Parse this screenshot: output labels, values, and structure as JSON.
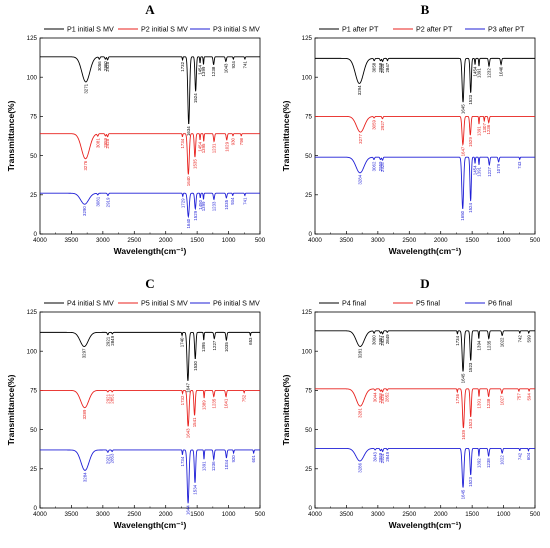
{
  "colors": {
    "series1": "#000000",
    "series2": "#e8211d",
    "series3": "#1f1fd6"
  },
  "chart_data": [
    {
      "type": "line",
      "panel_label": "A",
      "xlabel": "Wavelength(cm⁻¹)",
      "ylabel": "Transmittance(%)",
      "xlim": [
        4000,
        500
      ],
      "ylim": [
        0,
        125
      ],
      "xticks": [
        4000,
        3500,
        3000,
        2500,
        2000,
        1500,
        1000,
        500
      ],
      "yticks": [
        0,
        25,
        50,
        75,
        100,
        125
      ],
      "legend_position": "top",
      "series": [
        {
          "name": "P1 initial S MV",
          "baseline": 113,
          "peaks": [
            [
              3271,
              16,
              180
            ],
            [
              3056,
              1.5,
              25
            ],
            [
              2960,
              1.5,
              25
            ],
            [
              2925,
              2,
              25
            ],
            [
              1732,
              2,
              15
            ],
            [
              1634,
              43,
              40
            ],
            [
              1524,
              22,
              30
            ],
            [
              1454,
              4,
              15
            ],
            [
              1399,
              5,
              15
            ],
            [
              1238,
              5,
              25
            ],
            [
              1043,
              3,
              25
            ],
            [
              924,
              1.5,
              15
            ],
            [
              741,
              1.5,
              15
            ]
          ],
          "labels": [
            "3271",
            "3056",
            "2960",
            "2925",
            "1732",
            "1634",
            "1524",
            "1454",
            "1399",
            "1238",
            "1043",
            "924",
            "741"
          ]
        },
        {
          "name": "P2 initial S MV",
          "baseline": 64,
          "peaks": [
            [
              3276,
              16,
              180
            ],
            [
              3081,
              1.5,
              25
            ],
            [
              2959,
              1.5,
              25
            ],
            [
              2925,
              2,
              25
            ],
            [
              1734,
              2,
              15
            ],
            [
              1640,
              26,
              40
            ],
            [
              1535,
              15,
              30
            ],
            [
              1454,
              4,
              15
            ],
            [
              1395,
              5,
              15
            ],
            [
              1231,
              5,
              25
            ],
            [
              1029,
              4,
              25
            ],
            [
              930,
              1.5,
              15
            ],
            [
              798,
              1.5,
              15
            ]
          ],
          "labels": [
            "3276",
            "3081",
            "2959",
            "2925",
            "1734",
            "1640",
            "1535",
            "1454",
            "1395",
            "1231",
            "1029",
            "930",
            "798"
          ]
        },
        {
          "name": "P3 initial S MV",
          "baseline": 26,
          "peaks": [
            [
              3290,
              7,
              180
            ],
            [
              3081,
              1,
              25
            ],
            [
              2919,
              1.5,
              25
            ],
            [
              1729,
              2,
              15
            ],
            [
              1640,
              15,
              40
            ],
            [
              1529,
              10,
              30
            ],
            [
              1450,
              3,
              15
            ],
            [
              1399,
              4,
              15
            ],
            [
              1233,
              4,
              25
            ],
            [
              1035,
              3,
              25
            ],
            [
              934,
              1.5,
              15
            ],
            [
              741,
              1.5,
              15
            ]
          ],
          "labels": [
            "3290",
            "3081",
            "2919",
            "1729",
            "1640",
            "1529",
            "1450",
            "1399",
            "1233",
            "1035",
            "934",
            "741"
          ]
        }
      ]
    },
    {
      "type": "line",
      "panel_label": "B",
      "xlabel": "Wavelength(cm⁻¹)",
      "ylabel": "Transmittance(%)",
      "xlim": [
        4000,
        500
      ],
      "ylim": [
        0,
        125
      ],
      "xticks": [
        4000,
        3500,
        3000,
        2500,
        2000,
        1500,
        1000,
        500
      ],
      "yticks": [
        0,
        25,
        50,
        75,
        100,
        125
      ],
      "legend_position": "top",
      "series": [
        {
          "name": "P1 after PT",
          "baseline": 112,
          "peaks": [
            [
              3294,
              16,
              180
            ],
            [
              3058,
              1.5,
              25
            ],
            [
              2958,
              1.5,
              25
            ],
            [
              2925,
              2,
              25
            ],
            [
              2847,
              1.5,
              20
            ],
            [
              1645,
              28,
              40
            ],
            [
              1523,
              22,
              30
            ],
            [
              1454,
              4,
              15
            ],
            [
              1391,
              5,
              15
            ],
            [
              1232,
              5,
              25
            ],
            [
              1040,
              4,
              25
            ]
          ],
          "labels": [
            "3294",
            "3058",
            "2958",
            "2925",
            "2847",
            "1645",
            "1523",
            "1454",
            "1391",
            "1232",
            "1040"
          ]
        },
        {
          "name": "P2 after PT",
          "baseline": 75,
          "peaks": [
            [
              3277,
              10,
              180
            ],
            [
              3059,
              1,
              25
            ],
            [
              2927,
              1.5,
              25
            ],
            [
              1647,
              18,
              40
            ],
            [
              1529,
              12,
              30
            ],
            [
              1391,
              5,
              15
            ],
            [
              1307,
              3,
              15
            ],
            [
              1236,
              4,
              25
            ]
          ],
          "labels": [
            "3277",
            "3059",
            "2927",
            "1647",
            "1529",
            "1391",
            "1307",
            "1236"
          ]
        },
        {
          "name": "P3 after PT",
          "baseline": 49,
          "peaks": [
            [
              3284,
              10,
              180
            ],
            [
              3062,
              1.5,
              25
            ],
            [
              2959,
              1.5,
              25
            ],
            [
              2926,
              2,
              25
            ],
            [
              1650,
              33,
              40
            ],
            [
              1524,
              28,
              30
            ],
            [
              1454,
              4,
              15
            ],
            [
              1391,
              5,
              15
            ],
            [
              1227,
              5,
              25
            ],
            [
              1079,
              3,
              25
            ],
            [
              743,
              1.5,
              15
            ]
          ],
          "labels": [
            "3284",
            "3062",
            "2959",
            "2926",
            "1650",
            "1524",
            "1454",
            "1391",
            "1227",
            "1079",
            "743"
          ]
        }
      ]
    },
    {
      "type": "line",
      "panel_label": "C",
      "xlabel": "Wavelength(cm⁻¹)",
      "ylabel": "Transmittance(%)",
      "xlim": [
        4000,
        500
      ],
      "ylim": [
        0,
        125
      ],
      "xticks": [
        4000,
        3500,
        3000,
        2500,
        2000,
        1500,
        1000,
        500
      ],
      "yticks": [
        0,
        25,
        50,
        75,
        100,
        125
      ],
      "legend_position": "top",
      "series": [
        {
          "name": "P4 initial S MV",
          "baseline": 112,
          "peaks": [
            [
              3297,
              9,
              180
            ],
            [
              2921,
              1.5,
              25
            ],
            [
              2849,
              1,
              20
            ],
            [
              1740,
              2,
              15
            ],
            [
              1647,
              31,
              40
            ],
            [
              1530,
              17,
              30
            ],
            [
              1395,
              5,
              15
            ],
            [
              1227,
              4,
              25
            ],
            [
              1035,
              5,
              25
            ],
            [
              653,
              2,
              15
            ]
          ],
          "labels": [
            "3297",
            "2921",
            "2849",
            "1740",
            "1647",
            "1530",
            "1395",
            "1227",
            "1035",
            "653"
          ]
        },
        {
          "name": "P5 initial S MV",
          "baseline": 75,
          "peaks": [
            [
              3289,
              11,
              180
            ],
            [
              2921,
              1,
              25
            ],
            [
              2851,
              1,
              20
            ],
            [
              1732,
              2,
              15
            ],
            [
              1643,
              23,
              40
            ],
            [
              1541,
              16,
              30
            ],
            [
              1389,
              5,
              15
            ],
            [
              1235,
              4,
              25
            ],
            [
              1041,
              4,
              25
            ],
            [
              752,
              1.5,
              15
            ]
          ],
          "labels": [
            "3289",
            "2921",
            "2851",
            "1732",
            "1643",
            "1541",
            "1389",
            "1235",
            "1041",
            "752"
          ]
        },
        {
          "name": "P6 initial S MV",
          "baseline": 37,
          "peaks": [
            [
              3284,
              13,
              180
            ],
            [
              2921,
              1.5,
              25
            ],
            [
              2853,
              1,
              20
            ],
            [
              1734,
              3,
              15
            ],
            [
              1644,
              34,
              40
            ],
            [
              1534,
              21,
              30
            ],
            [
              1391,
              6,
              15
            ],
            [
              1236,
              6,
              25
            ],
            [
              1034,
              5,
              25
            ],
            [
              920,
              2,
              15
            ],
            [
              601,
              2,
              15
            ]
          ],
          "labels": [
            "3284",
            "2921",
            "2853",
            "1734",
            "1644",
            "1534",
            "1391",
            "1236",
            "1034",
            "920",
            "601"
          ]
        }
      ]
    },
    {
      "type": "line",
      "panel_label": "D",
      "xlabel": "Wavelength(cm⁻¹)",
      "ylabel": "Transmittance(%)",
      "xlim": [
        4000,
        500
      ],
      "ylim": [
        0,
        125
      ],
      "xticks": [
        4000,
        3500,
        3000,
        2500,
        2000,
        1500,
        1000,
        500
      ],
      "yticks": [
        0,
        25,
        50,
        75,
        100,
        125
      ],
      "legend_position": "top",
      "series": [
        {
          "name": "P4 final",
          "baseline": 113,
          "peaks": [
            [
              3281,
              10,
              180
            ],
            [
              3060,
              1.5,
              25
            ],
            [
              2957,
              1.5,
              25
            ],
            [
              2924,
              2,
              25
            ],
            [
              2849,
              1,
              20
            ],
            [
              1734,
              2,
              15
            ],
            [
              1645,
              26,
              40
            ],
            [
              1523,
              19,
              30
            ],
            [
              1394,
              5,
              15
            ],
            [
              1235,
              5,
              25
            ],
            [
              1022,
              3,
              25
            ],
            [
              742,
              1.5,
              15
            ],
            [
              599,
              1.5,
              15
            ]
          ],
          "labels": [
            "3281",
            "3060",
            "2957",
            "2924",
            "2849",
            "1734",
            "1645",
            "1523",
            "1394",
            "1235",
            "1022",
            "742",
            "599"
          ]
        },
        {
          "name": "P5 final",
          "baseline": 76,
          "peaks": [
            [
              3281,
              11,
              180
            ],
            [
              3044,
              1,
              25
            ],
            [
              2958,
              1.5,
              25
            ],
            [
              2926,
              2,
              25
            ],
            [
              2852,
              1,
              20
            ],
            [
              1736,
              2,
              15
            ],
            [
              1639,
              25,
              40
            ],
            [
              1523,
              18,
              30
            ],
            [
              1391,
              5,
              15
            ],
            [
              1238,
              5,
              25
            ],
            [
              1027,
              3,
              25
            ],
            [
              757,
              1.5,
              15
            ],
            [
              594,
              1.5,
              15
            ]
          ],
          "labels": [
            "3281",
            "3044",
            "2958",
            "2926",
            "2852",
            "1736",
            "1639",
            "1523",
            "1391",
            "1238",
            "1027",
            "757",
            "594"
          ]
        },
        {
          "name": "P6 final",
          "baseline": 38,
          "peaks": [
            [
              3286,
              8,
              180
            ],
            [
              3043,
              1,
              25
            ],
            [
              2959,
              1.5,
              25
            ],
            [
              2924,
              2,
              25
            ],
            [
              2849,
              1,
              20
            ],
            [
              1645,
              25,
              40
            ],
            [
              1523,
              17,
              30
            ],
            [
              1392,
              5,
              15
            ],
            [
              1238,
              5,
              25
            ],
            [
              1022,
              3,
              25
            ],
            [
              742,
              1.5,
              15
            ],
            [
              604,
              1.5,
              15
            ]
          ],
          "labels": [
            "3286",
            "3043",
            "2959",
            "2924",
            "2849",
            "1645",
            "1523",
            "1392",
            "1238",
            "1022",
            "742",
            "604"
          ]
        }
      ]
    }
  ]
}
